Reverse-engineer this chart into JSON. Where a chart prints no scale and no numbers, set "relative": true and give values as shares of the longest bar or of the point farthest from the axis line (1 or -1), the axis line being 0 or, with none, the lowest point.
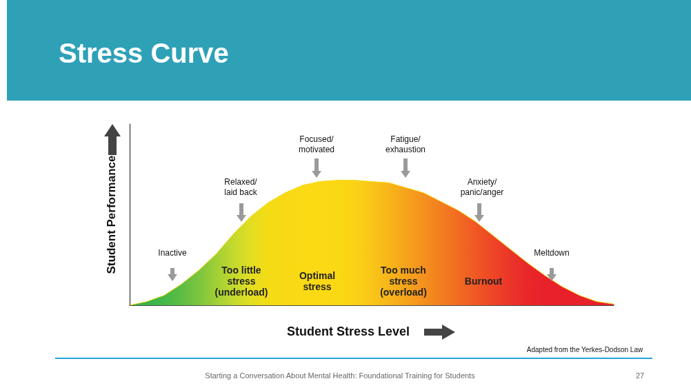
{
  "chart_data": {
    "type": "area",
    "title": "Stress Curve",
    "xlabel": "Student Stress Level",
    "ylabel": "Student Performance",
    "relative": true,
    "color": "#f9d914",
    "marker": "none",
    "categories": [
      null,
      null,
      null,
      null,
      null,
      null,
      null,
      null,
      null,
      null,
      null,
      null,
      null,
      null,
      null,
      null,
      null,
      null,
      null,
      null,
      null,
      null,
      null,
      null,
      null,
      null,
      null,
      null,
      null
    ],
    "values": [
      0,
      0.03,
      0.08,
      0.17,
      0.28,
      0.41,
      0.57,
      0.71,
      0.82,
      0.9,
      0.96,
      0.99,
      1,
      1,
      0.99,
      0.98,
      0.94,
      0.9,
      0.83,
      0.76,
      0.67,
      0.56,
      0.45,
      0.34,
      0.24,
      0.15,
      0.08,
      0.03,
      0.01
    ],
    "colors": [
      "#39b54a",
      "#39b54a",
      "#45b848",
      "#5cbd44",
      "#7cc53d",
      "#a0cf36",
      "#c4d92e",
      "#e2de22",
      "#f4dc15",
      "#f9d914",
      "#fada14",
      "#fbd914",
      "#fbd814",
      "#fbd315",
      "#f9c518",
      "#f7b51a",
      "#f5a31c",
      "#f4911e",
      "#f37e20",
      "#f26b22",
      "#f05824",
      "#ee4626",
      "#eb3528",
      "#e92729",
      "#e8222a",
      "#e8202a",
      "#e8202a",
      "#e8202a",
      "#e8202a"
    ],
    "annotations": [
      "Inactive",
      "Relaxed/\nlaid back",
      "Focused/\nmotivated",
      "Fatigue/\nexhaustion",
      "Anxiety/\npanic/anger",
      "Meltdown",
      "Too little\nstress\n(underload)",
      "Optimal\nstress",
      "Too much\nstress\n(overload)",
      "Burnout",
      "Adapted from the Yerkes-Dodson Law",
      "Starting a Conversation About Mental Health: Foundational Training for Students",
      "27"
    ]
  }
}
